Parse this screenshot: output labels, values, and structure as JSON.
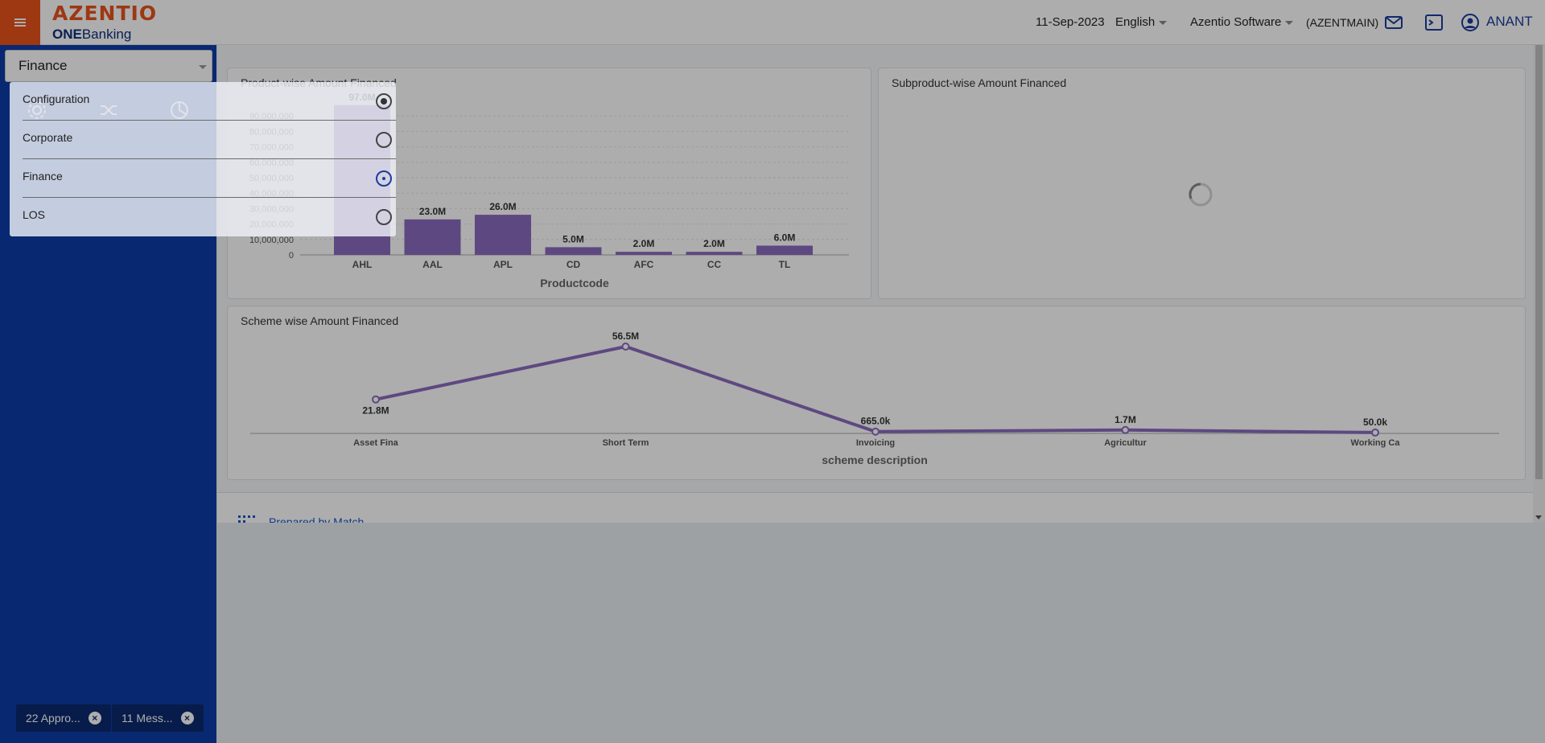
{
  "header": {
    "logo_main": "AZENTIO",
    "logo_sub_bold": "ONE",
    "logo_sub_rest": "Banking",
    "date": "11-Sep-2023",
    "language": "English",
    "company": "Azentio Software",
    "branch": "(AZENTMAIN)",
    "user": "ANANT"
  },
  "sidebar": {
    "app_selected": "Finance",
    "icons": [
      "settings-icon",
      "shuffle-icon",
      "pie-chart-icon"
    ],
    "notifications": [
      {
        "label": "22 Appro..."
      },
      {
        "label": "11 Mess..."
      }
    ],
    "close_glyph": "×"
  },
  "app_menu": {
    "options": [
      {
        "label": "Configuration",
        "selected": true
      },
      {
        "label": "Corporate",
        "selected": false
      },
      {
        "label": "Finance",
        "selected": false,
        "focused": true
      },
      {
        "label": "LOS",
        "selected": false
      }
    ]
  },
  "cards": {
    "product": {
      "title": "Product-wise Amount Financed"
    },
    "subproduct": {
      "title": "Subproduct-wise Amount Financed"
    },
    "scheme": {
      "title": "Scheme wise Amount Financed"
    },
    "bottom": {
      "title": "Prepared by Match"
    }
  },
  "colors": {
    "series": "#8b6bbf",
    "sidebar": "#0d3ba8",
    "brand": "#e8531c"
  },
  "chart_data": [
    {
      "type": "bar",
      "title": "Product-wise Amount Financed",
      "xlabel": "Productcode",
      "ylabel": "",
      "categories": [
        "AHL",
        "AAL",
        "APL",
        "CD",
        "AFC",
        "CC",
        "TL"
      ],
      "values": [
        97000000,
        23000000,
        26000000,
        5000000,
        2000000,
        2000000,
        6000000
      ],
      "data_labels": [
        "97.0M",
        "23.0M",
        "26.0M",
        "5.0M",
        "2.0M",
        "2.0M",
        "6.0M"
      ],
      "yticks": [
        "0",
        "10,000,000",
        "20,000,000",
        "30,000,000",
        "40,000,000",
        "50,000,000",
        "60,000,000",
        "70,000,000",
        "80,000,000",
        "90,000,000"
      ],
      "ylim": [
        0,
        100000000
      ],
      "grid": true
    },
    {
      "type": "line",
      "title": "Scheme wise Amount Financed",
      "xlabel": "scheme description",
      "categories": [
        "Asset Fina",
        "Short Term",
        "Invoicing",
        "Agricultur",
        "Working Ca"
      ],
      "values": [
        21800000,
        56500000,
        665000,
        1700000,
        50000
      ],
      "data_labels": [
        "21.8M",
        "56.5M",
        "665.0k",
        "1.7M",
        "50.0k"
      ],
      "grid": false
    }
  ]
}
